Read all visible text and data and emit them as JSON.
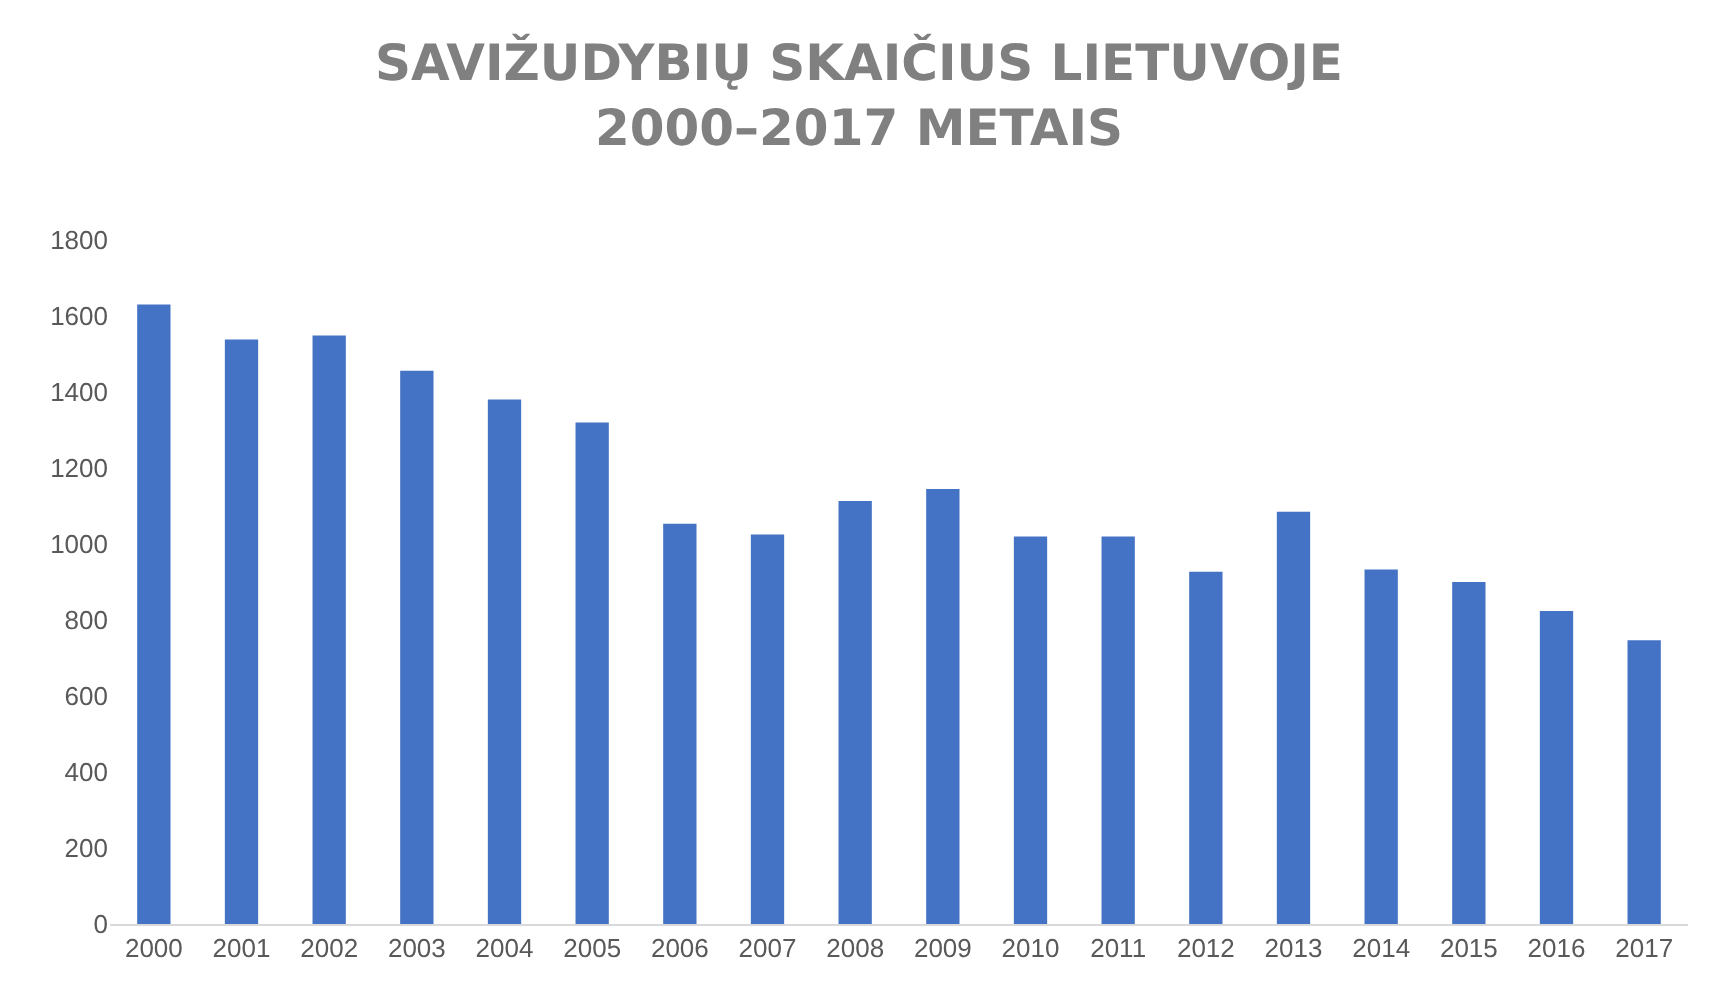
{
  "chart_data": {
    "type": "bar",
    "title": "SAVIŽUDYBIŲ SKAIČIUS LIETUVOJE\n2000–2017 METAIS",
    "categories": [
      "2000",
      "2001",
      "2002",
      "2003",
      "2004",
      "2005",
      "2006",
      "2007",
      "2008",
      "2009",
      "2010",
      "2011",
      "2012",
      "2013",
      "2014",
      "2015",
      "2016",
      "2017"
    ],
    "values": [
      1630,
      1538,
      1549,
      1456,
      1380,
      1320,
      1053,
      1025,
      1113,
      1145,
      1020,
      1020,
      927,
      1085,
      933,
      900,
      824,
      747
    ],
    "color": "#4472c4",
    "ylim": [
      0,
      1800
    ],
    "yticks": [
      0,
      200,
      400,
      600,
      800,
      1000,
      1200,
      1400,
      1600,
      1800
    ],
    "grid": false
  }
}
